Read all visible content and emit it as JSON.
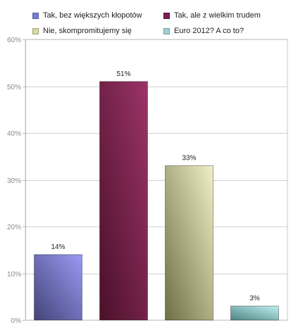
{
  "chart_data": {
    "type": "bar",
    "categories": [
      "Tak, bez większych kłopotów",
      "Tak, ale z wielkim trudem",
      "Nie, skompromitujemy się",
      "Euro 2012? A co to?"
    ],
    "values": [
      14,
      51,
      33,
      3
    ],
    "data_labels": [
      "14%",
      "51%",
      "33%",
      "3%"
    ],
    "colors": [
      "#8e8ee6",
      "#8a2a5a",
      "#e4e4b4",
      "#a8dcdc"
    ],
    "ylim": [
      0,
      60
    ],
    "yticks": [
      0,
      10,
      20,
      30,
      40,
      50,
      60
    ],
    "ytick_labels": [
      "0%",
      "10%",
      "20%",
      "30%",
      "40%",
      "50%",
      "60%"
    ],
    "grid": true,
    "legend_position": "top",
    "title": "",
    "xlabel": "",
    "ylabel": ""
  }
}
